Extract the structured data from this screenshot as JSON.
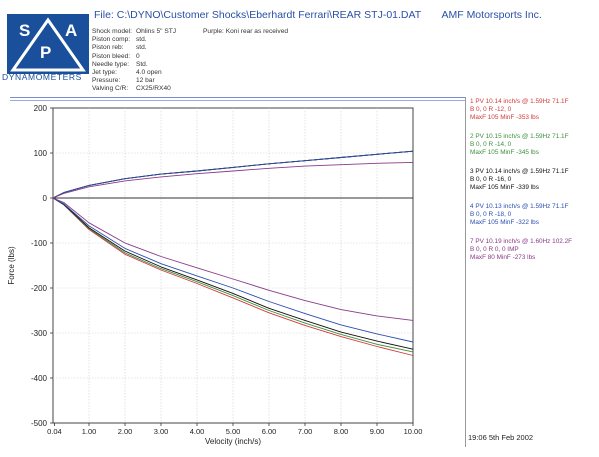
{
  "header": {
    "file_label": "File: C:\\DYNO\\Customer Shocks\\Eberhardt Ferrari\\REAR STJ-01.DAT",
    "company": "AMF Motorsports Inc."
  },
  "logo": {
    "letters": [
      "S",
      "P",
      "A"
    ],
    "name": "DYNAMOMETERS",
    "colors": {
      "blue": "#1a4f9c",
      "white": "#ffffff"
    }
  },
  "specs": [
    {
      "label": "Shock model:",
      "value": "Ohlins 5\" STJ"
    },
    {
      "label": "Piston comp:",
      "value": "std."
    },
    {
      "label": "Piston reb:",
      "value": "std."
    },
    {
      "label": "Piston bleed:",
      "value": "0"
    },
    {
      "label": "Needle type:",
      "value": "Std."
    },
    {
      "label": "Jet type:",
      "value": "4.0 open"
    },
    {
      "label": "Pressure:",
      "value": "12 bar"
    },
    {
      "label": "Valving C/R:",
      "value": "CX25/RX40"
    }
  ],
  "note": "Purple: Koni rear as received",
  "legend": [
    {
      "line1": "1 PV 10.14 inch/s @ 1.59Hz 71.1F",
      "line2": "B  0, 0  R -12, 0",
      "line3": "MaxF  105  MinF  -353 lbs",
      "color": "#d23a3a"
    },
    {
      "line1": "2 PV 10.15 inch/s @ 1.59Hz 71.1F",
      "line2": "B  0, 0  R -14, 0",
      "line3": "MaxF  105  MinF  -345 lbs",
      "color": "#3f8f3f"
    },
    {
      "line1": "3 PV 10.14 inch/s @ 1.59Hz 71.1F",
      "line2": "B  0, 0  R -16, 0",
      "line3": "MaxF  105  MinF  -339 lbs",
      "color": "#111111"
    },
    {
      "line1": "4 PV 10.13 inch/s @ 1.59Hz 71.1F",
      "line2": "B  0, 0  R -18, 0",
      "line3": "MaxF  105  MinF  -322 lbs",
      "color": "#2a4fb0"
    },
    {
      "line1": "7 PV 10.19 inch/s @ 1.60Hz 102.2F",
      "line2": "B  0, 0  R  0, 0 IMP",
      "line3": "MaxF  80  MinF  -273 lbs",
      "color": "#8a3a8a"
    }
  ],
  "footer": {
    "timestamp": "19:06  5th Feb 2002"
  },
  "chart_data": {
    "type": "line",
    "title": "",
    "xlabel": "Velocity (inch/s)",
    "ylabel": "Force (lbs)",
    "xlim": [
      0,
      10
    ],
    "ylim": [
      -500,
      200
    ],
    "x_ticks": [
      0.04,
      1.0,
      2.0,
      3.0,
      4.0,
      5.0,
      6.0,
      7.0,
      8.0,
      9.0,
      10.0
    ],
    "x_tick_labels": [
      "0.04",
      "1.00",
      "2.00",
      "3.00",
      "4.00",
      "5.00",
      "6.00",
      "7.00",
      "8.00",
      "9.00",
      "10.00"
    ],
    "y_ticks": [
      200,
      100,
      0,
      -100,
      -200,
      -300,
      -400,
      -500
    ],
    "y_tick_labels": [
      "200",
      "100",
      "0",
      "-100",
      "-200",
      "-300",
      "-400",
      "-500"
    ],
    "grid": true,
    "series": [
      {
        "name": "1 PV 10.14 inch/s @ 1.59Hz 71.1F",
        "color": "#d23a3a",
        "x": [
          0,
          0.3,
          1,
          2,
          3,
          4,
          5,
          6,
          7,
          8,
          9,
          10
        ],
        "y": [
          0,
          12,
          28,
          43,
          53,
          60,
          68,
          76,
          83,
          90,
          97,
          104
        ],
        "x_rebound": [
          0,
          0.3,
          1,
          2,
          3,
          4,
          5,
          6,
          7,
          8,
          9,
          10
        ],
        "y_rebound": [
          0,
          -15,
          -70,
          -125,
          -160,
          -190,
          -222,
          -255,
          -283,
          -308,
          -330,
          -350
        ]
      },
      {
        "name": "2 PV 10.15 inch/s @ 1.59Hz 71.1F",
        "color": "#3f8f3f",
        "x": [
          0,
          0.3,
          1,
          2,
          3,
          4,
          5,
          6,
          7,
          8,
          9,
          10
        ],
        "y": [
          0,
          12,
          28,
          43,
          53,
          60,
          68,
          76,
          83,
          90,
          97,
          104
        ],
        "x_rebound": [
          0,
          0.3,
          1,
          2,
          3,
          4,
          5,
          6,
          7,
          8,
          9,
          10
        ],
        "y_rebound": [
          0,
          -15,
          -68,
          -122,
          -157,
          -186,
          -217,
          -250,
          -278,
          -303,
          -325,
          -342
        ]
      },
      {
        "name": "3 PV 10.14 inch/s @ 1.59Hz 71.1F",
        "color": "#111111",
        "x": [
          0,
          0.3,
          1,
          2,
          3,
          4,
          5,
          6,
          7,
          8,
          9,
          10
        ],
        "y": [
          0,
          12,
          28,
          43,
          53,
          60,
          68,
          76,
          83,
          90,
          97,
          104
        ],
        "x_rebound": [
          0,
          0.3,
          1,
          2,
          3,
          4,
          5,
          6,
          7,
          8,
          9,
          10
        ],
        "y_rebound": [
          0,
          -14,
          -66,
          -118,
          -153,
          -182,
          -212,
          -245,
          -272,
          -298,
          -318,
          -336
        ]
      },
      {
        "name": "4 PV 10.13 inch/s @ 1.59Hz 71.1F",
        "color": "#2a4fb0",
        "x": [
          0,
          0.3,
          1,
          2,
          3,
          4,
          5,
          6,
          7,
          8,
          9,
          10
        ],
        "y": [
          0,
          12,
          28,
          43,
          53,
          60,
          68,
          76,
          83,
          90,
          97,
          104
        ],
        "x_rebound": [
          0,
          0.3,
          1,
          2,
          3,
          4,
          5,
          6,
          7,
          8,
          9,
          10
        ],
        "y_rebound": [
          0,
          -13,
          -62,
          -112,
          -146,
          -173,
          -200,
          -230,
          -257,
          -282,
          -302,
          -320
        ]
      },
      {
        "name": "7 PV 10.19 inch/s @ 1.60Hz 102.2F",
        "color": "#8a3a8a",
        "x": [
          0,
          0.3,
          1,
          2,
          3,
          4,
          5,
          6,
          7,
          8,
          9,
          10
        ],
        "y": [
          0,
          10,
          25,
          38,
          47,
          54,
          60,
          66,
          71,
          74,
          77,
          79
        ],
        "x_rebound": [
          0,
          0.3,
          1,
          2,
          3,
          4,
          5,
          6,
          7,
          8,
          9,
          10
        ],
        "y_rebound": [
          0,
          -10,
          -55,
          -100,
          -130,
          -155,
          -180,
          -205,
          -228,
          -248,
          -262,
          -272
        ]
      }
    ]
  }
}
